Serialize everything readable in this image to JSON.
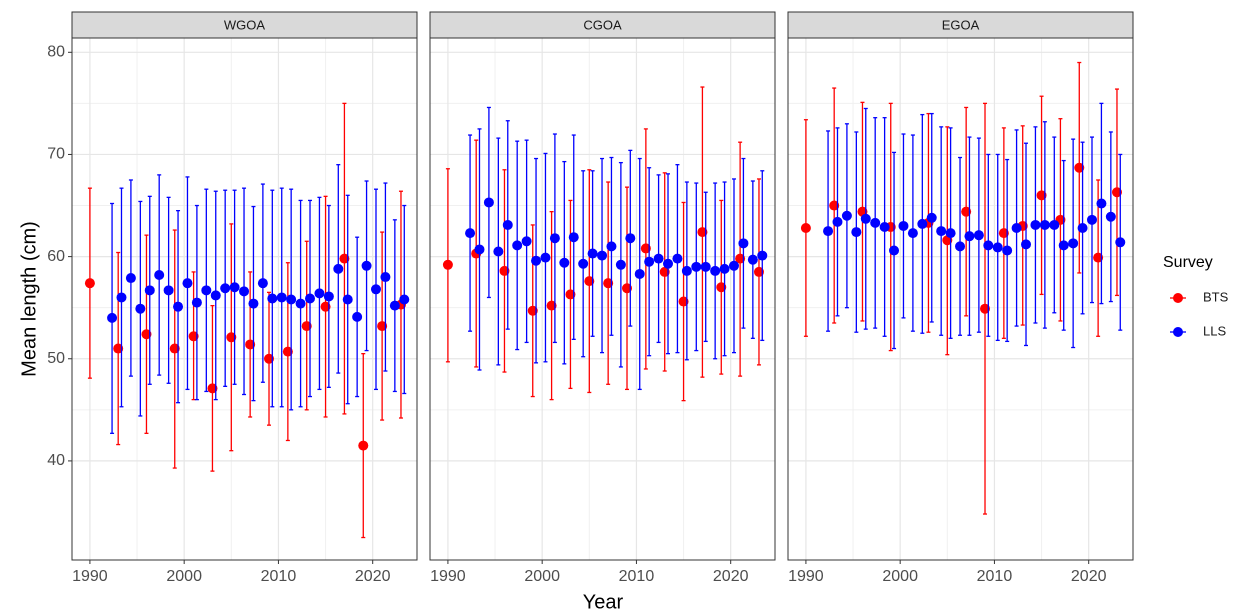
{
  "y_axis_label": "Mean length (cm)",
  "x_axis_label": "Year",
  "legend_title": "Survey",
  "chart_data": [
    {
      "type": "errorbar",
      "title": "WGOA",
      "xlim": [
        1988.1,
        2024.7
      ],
      "ylim": [
        30.3,
        81.4
      ],
      "xticks": [
        1990,
        2000,
        2010,
        2020
      ],
      "yticks": [
        40,
        50,
        60,
        70,
        80
      ],
      "grid": true,
      "series": [
        {
          "name": "BTS",
          "color": "#ff0000",
          "x": [
            1990,
            1993,
            1996,
            1999,
            2001,
            2003,
            2005,
            2007,
            2009,
            2011,
            2013,
            2015,
            2017,
            2019,
            2021,
            2023
          ],
          "values": [
            57.4,
            51.0,
            52.4,
            51.0,
            52.2,
            47.1,
            52.1,
            51.4,
            50.0,
            50.7,
            53.2,
            55.1,
            59.8,
            41.5,
            53.2,
            55.3
          ],
          "lower": [
            48.1,
            41.6,
            42.7,
            39.3,
            46.0,
            39.0,
            41.0,
            44.3,
            43.5,
            42.0,
            45.0,
            44.3,
            44.6,
            32.5,
            44.0,
            44.2
          ],
          "upper": [
            66.7,
            60.4,
            62.1,
            62.6,
            58.5,
            55.2,
            63.2,
            58.5,
            56.5,
            59.4,
            61.5,
            65.9,
            75.0,
            50.5,
            62.4,
            66.4
          ]
        },
        {
          "name": "LLS",
          "color": "#0000ff",
          "x": [
            1992,
            1993,
            1994,
            1995,
            1996,
            1997,
            1998,
            1999,
            2000,
            2001,
            2002,
            2003,
            2004,
            2005,
            2006,
            2007,
            2008,
            2009,
            2010,
            2011,
            2012,
            2013,
            2014,
            2015,
            2016,
            2017,
            2018,
            2019,
            2020,
            2021,
            2022,
            2023
          ],
          "values": [
            54.0,
            56.0,
            57.9,
            54.9,
            56.7,
            58.2,
            56.7,
            55.1,
            57.4,
            55.5,
            56.7,
            56.2,
            56.9,
            57.0,
            56.6,
            55.4,
            57.4,
            55.9,
            56.0,
            55.8,
            55.4,
            55.9,
            56.4,
            56.1,
            58.8,
            55.8,
            54.1,
            59.1,
            56.8,
            58.0,
            55.2,
            55.8
          ],
          "lower": [
            42.7,
            45.3,
            48.3,
            44.4,
            47.5,
            48.4,
            47.6,
            45.7,
            47.0,
            46.0,
            46.8,
            46.0,
            47.3,
            47.5,
            46.5,
            45.9,
            47.7,
            45.3,
            45.3,
            45.0,
            45.3,
            46.3,
            47.0,
            47.2,
            48.6,
            45.6,
            46.3,
            50.8,
            47.0,
            48.8,
            46.8,
            46.6
          ],
          "upper": [
            65.2,
            66.7,
            67.5,
            65.4,
            65.9,
            68.0,
            65.8,
            64.5,
            67.8,
            65.0,
            66.6,
            66.4,
            66.5,
            66.5,
            66.7,
            64.9,
            67.1,
            66.5,
            66.7,
            66.6,
            65.5,
            65.5,
            65.8,
            65.0,
            69.0,
            66.0,
            61.9,
            67.4,
            66.6,
            67.2,
            63.6,
            65.0
          ]
        }
      ]
    },
    {
      "type": "errorbar",
      "title": "CGOA",
      "xlim": [
        1988.1,
        2024.7
      ],
      "ylim": [
        30.3,
        81.4
      ],
      "xticks": [
        1990,
        2000,
        2010,
        2020
      ],
      "yticks": [
        40,
        50,
        60,
        70,
        80
      ],
      "grid": true,
      "series": [
        {
          "name": "BTS",
          "color": "#ff0000",
          "x": [
            1990,
            1993,
            1996,
            1999,
            2001,
            2003,
            2005,
            2007,
            2009,
            2011,
            2013,
            2015,
            2017,
            2019,
            2021,
            2023
          ],
          "values": [
            59.2,
            60.3,
            58.6,
            54.7,
            55.2,
            56.3,
            57.6,
            57.4,
            56.9,
            60.8,
            58.5,
            55.6,
            62.4,
            57.0,
            59.8,
            58.5
          ],
          "lower": [
            49.7,
            49.2,
            48.7,
            46.3,
            46.0,
            47.1,
            46.7,
            47.5,
            47.0,
            49.0,
            48.8,
            45.9,
            48.2,
            48.5,
            48.3,
            49.4
          ],
          "upper": [
            68.6,
            71.4,
            68.5,
            63.1,
            64.4,
            65.5,
            68.5,
            67.3,
            66.8,
            72.5,
            68.2,
            65.3,
            76.6,
            65.5,
            71.2,
            67.6
          ]
        },
        {
          "name": "LLS",
          "color": "#0000ff",
          "x": [
            1992,
            1993,
            1994,
            1995,
            1996,
            1997,
            1998,
            1999,
            2000,
            2001,
            2002,
            2003,
            2004,
            2005,
            2006,
            2007,
            2008,
            2009,
            2010,
            2011,
            2012,
            2013,
            2014,
            2015,
            2016,
            2017,
            2018,
            2019,
            2020,
            2021,
            2022,
            2023
          ],
          "values": [
            62.3,
            60.7,
            65.3,
            60.5,
            63.1,
            61.1,
            61.5,
            59.6,
            59.9,
            61.8,
            59.4,
            61.9,
            59.3,
            60.3,
            60.1,
            61.0,
            59.2,
            61.8,
            58.3,
            59.5,
            59.8,
            59.3,
            59.8,
            58.6,
            59.0,
            59.0,
            58.6,
            58.8,
            59.1,
            61.3,
            59.7,
            60.1
          ],
          "lower": [
            52.7,
            48.9,
            56.0,
            49.4,
            52.9,
            50.9,
            51.6,
            49.6,
            49.7,
            51.6,
            49.5,
            51.9,
            50.2,
            52.2,
            50.6,
            52.3,
            49.2,
            53.2,
            47.0,
            50.3,
            51.6,
            50.5,
            50.6,
            49.9,
            50.8,
            51.7,
            50.0,
            50.3,
            50.6,
            53.0,
            52.0,
            51.8
          ],
          "upper": [
            71.9,
            72.5,
            74.6,
            71.6,
            73.3,
            71.3,
            71.4,
            69.6,
            70.1,
            72.0,
            69.3,
            71.9,
            68.4,
            68.4,
            69.6,
            69.7,
            69.2,
            70.4,
            69.6,
            68.7,
            68.0,
            68.1,
            69.0,
            67.3,
            67.2,
            66.3,
            67.2,
            67.3,
            67.6,
            69.6,
            67.4,
            68.4
          ]
        }
      ]
    },
    {
      "type": "errorbar",
      "title": "EGOA",
      "xlim": [
        1988.1,
        2024.7
      ],
      "ylim": [
        30.3,
        81.4
      ],
      "xticks": [
        1990,
        2000,
        2010,
        2020
      ],
      "yticks": [
        40,
        50,
        60,
        70,
        80
      ],
      "grid": true,
      "series": [
        {
          "name": "BTS",
          "color": "#ff0000",
          "x": [
            1990,
            1993,
            1996,
            1999,
            2003,
            2005,
            2007,
            2009,
            2011,
            2013,
            2015,
            2017,
            2019,
            2021,
            2023
          ],
          "values": [
            62.8,
            65.0,
            64.4,
            62.9,
            63.3,
            61.6,
            64.4,
            54.9,
            62.3,
            63.0,
            66.0,
            63.6,
            68.7,
            59.9,
            66.3
          ],
          "lower": [
            52.2,
            53.5,
            53.7,
            50.8,
            52.6,
            50.4,
            54.2,
            34.8,
            52.0,
            53.3,
            56.3,
            53.7,
            58.4,
            52.2,
            56.2
          ],
          "upper": [
            73.4,
            76.5,
            75.1,
            75.0,
            74.0,
            72.7,
            74.6,
            75.0,
            72.6,
            72.8,
            75.7,
            73.5,
            79.0,
            67.5,
            76.4
          ]
        },
        {
          "name": "LLS",
          "color": "#0000ff",
          "x": [
            1992,
            1993,
            1994,
            1995,
            1996,
            1997,
            1998,
            1999,
            2000,
            2001,
            2002,
            2003,
            2004,
            2005,
            2006,
            2007,
            2008,
            2009,
            2010,
            2011,
            2012,
            2013,
            2014,
            2015,
            2016,
            2017,
            2018,
            2019,
            2020,
            2021,
            2022,
            2023
          ],
          "values": [
            62.5,
            63.4,
            64.0,
            62.4,
            63.7,
            63.3,
            62.9,
            60.6,
            63.0,
            62.3,
            63.2,
            63.8,
            62.5,
            62.3,
            61.0,
            62.0,
            62.1,
            61.1,
            60.9,
            60.6,
            62.8,
            61.2,
            63.1,
            63.1,
            63.1,
            61.1,
            61.3,
            62.8,
            63.6,
            65.2,
            63.9,
            61.4
          ],
          "lower": [
            52.7,
            54.2,
            55.0,
            52.6,
            52.9,
            53.0,
            52.2,
            51.0,
            54.0,
            52.7,
            52.5,
            53.6,
            52.3,
            52.0,
            52.3,
            52.3,
            52.6,
            52.2,
            51.8,
            51.7,
            53.2,
            51.3,
            53.5,
            53.0,
            54.5,
            52.8,
            51.1,
            54.4,
            55.5,
            55.4,
            55.6,
            52.8
          ],
          "upper": [
            72.3,
            72.6,
            73.0,
            72.2,
            74.5,
            73.6,
            73.6,
            70.2,
            72.0,
            71.9,
            73.9,
            74.0,
            72.7,
            72.6,
            69.7,
            71.7,
            71.6,
            70.0,
            70.0,
            69.5,
            72.4,
            71.1,
            72.7,
            73.2,
            71.7,
            69.4,
            71.5,
            71.2,
            71.7,
            75.0,
            72.2,
            70.0
          ]
        }
      ]
    }
  ]
}
